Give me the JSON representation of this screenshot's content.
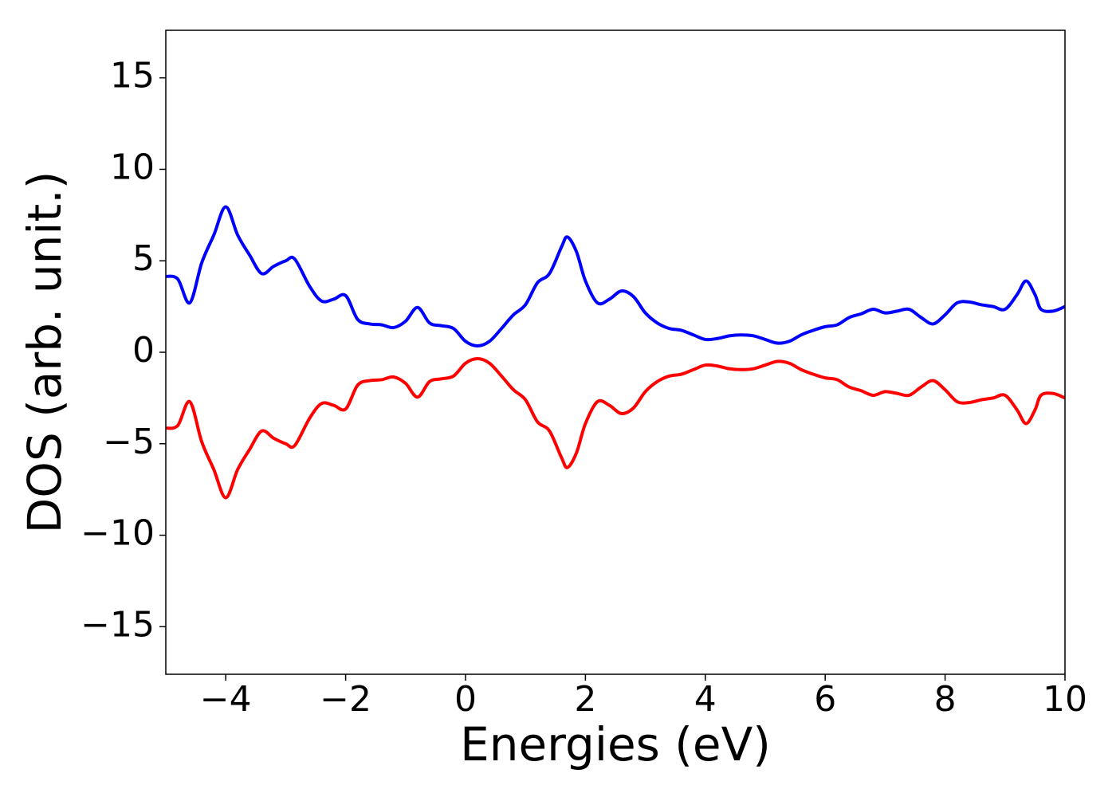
{
  "chart_data": {
    "type": "line",
    "xlabel": "Energies (eV)",
    "ylabel": "DOS (arb. unit.)",
    "x": [
      -5,
      -4.8,
      -4.6,
      -4.4,
      -4.2,
      -4.0,
      -3.8,
      -3.6,
      -3.4,
      -3.2,
      -3.0,
      -2.85,
      -2.6,
      -2.4,
      -2.2,
      -2.0,
      -1.8,
      -1.6,
      -1.4,
      -1.2,
      -1.0,
      -0.8,
      -0.6,
      -0.4,
      -0.2,
      0.0,
      0.2,
      0.4,
      0.6,
      0.8,
      1.0,
      1.2,
      1.4,
      1.6,
      1.7,
      1.85,
      2.0,
      2.2,
      2.4,
      2.6,
      2.8,
      3.0,
      3.2,
      3.4,
      3.6,
      3.8,
      4.0,
      4.2,
      4.4,
      4.6,
      4.8,
      5.0,
      5.2,
      5.4,
      5.6,
      5.8,
      6.0,
      6.2,
      6.4,
      6.6,
      6.8,
      7.0,
      7.2,
      7.4,
      7.6,
      7.8,
      8.0,
      8.2,
      8.4,
      8.6,
      8.8,
      9.0,
      9.2,
      9.35,
      9.5,
      9.6,
      9.8,
      10
    ],
    "series": [
      {
        "color": "#0000ff",
        "values": [
          4.15,
          4.0,
          2.7,
          4.9,
          6.4,
          7.95,
          6.4,
          5.3,
          4.3,
          4.7,
          5.0,
          5.1,
          3.6,
          2.8,
          2.9,
          3.1,
          1.8,
          1.55,
          1.5,
          1.35,
          1.7,
          2.45,
          1.6,
          1.45,
          1.3,
          0.6,
          0.35,
          0.6,
          1.3,
          2.05,
          2.6,
          3.8,
          4.3,
          5.75,
          6.3,
          5.5,
          3.9,
          2.7,
          2.9,
          3.35,
          3.05,
          2.15,
          1.6,
          1.3,
          1.2,
          0.95,
          0.7,
          0.75,
          0.9,
          0.95,
          0.9,
          0.7,
          0.5,
          0.6,
          0.95,
          1.2,
          1.4,
          1.5,
          1.9,
          2.1,
          2.35,
          2.15,
          2.25,
          2.35,
          1.9,
          1.55,
          2.05,
          2.7,
          2.75,
          2.6,
          2.5,
          2.35,
          3.15,
          3.9,
          3.15,
          2.35,
          2.25,
          2.5
        ]
      },
      {
        "color": "#ff0000",
        "values": [
          -4.15,
          -4.0,
          -2.7,
          -4.9,
          -6.4,
          -7.95,
          -6.4,
          -5.3,
          -4.3,
          -4.7,
          -5.0,
          -5.1,
          -3.6,
          -2.8,
          -2.9,
          -3.1,
          -1.8,
          -1.55,
          -1.5,
          -1.35,
          -1.7,
          -2.45,
          -1.6,
          -1.45,
          -1.3,
          -0.6,
          -0.35,
          -0.6,
          -1.3,
          -2.05,
          -2.6,
          -3.8,
          -4.3,
          -5.75,
          -6.3,
          -5.5,
          -3.9,
          -2.7,
          -2.9,
          -3.35,
          -3.05,
          -2.15,
          -1.6,
          -1.3,
          -1.2,
          -0.95,
          -0.7,
          -0.75,
          -0.9,
          -0.95,
          -0.9,
          -0.7,
          -0.5,
          -0.6,
          -0.95,
          -1.2,
          -1.4,
          -1.5,
          -1.9,
          -2.1,
          -2.35,
          -2.15,
          -2.25,
          -2.35,
          -1.9,
          -1.55,
          -2.05,
          -2.7,
          -2.75,
          -2.6,
          -2.5,
          -2.35,
          -3.15,
          -3.9,
          -3.15,
          -2.35,
          -2.25,
          -2.5
        ]
      }
    ],
    "xlim": [
      -5,
      10
    ],
    "xticks": [
      {
        "value": -4,
        "label": "−4"
      },
      {
        "value": -2,
        "label": "−2"
      },
      0,
      2,
      4,
      6,
      8,
      10
    ],
    "ylim": [
      -17.6,
      17.6
    ],
    "yticks": [
      {
        "value": -15,
        "label": "−15"
      },
      {
        "value": -10,
        "label": "−10"
      },
      {
        "value": -5,
        "label": "−5"
      },
      0,
      5,
      10,
      15
    ],
    "grid": false
  }
}
